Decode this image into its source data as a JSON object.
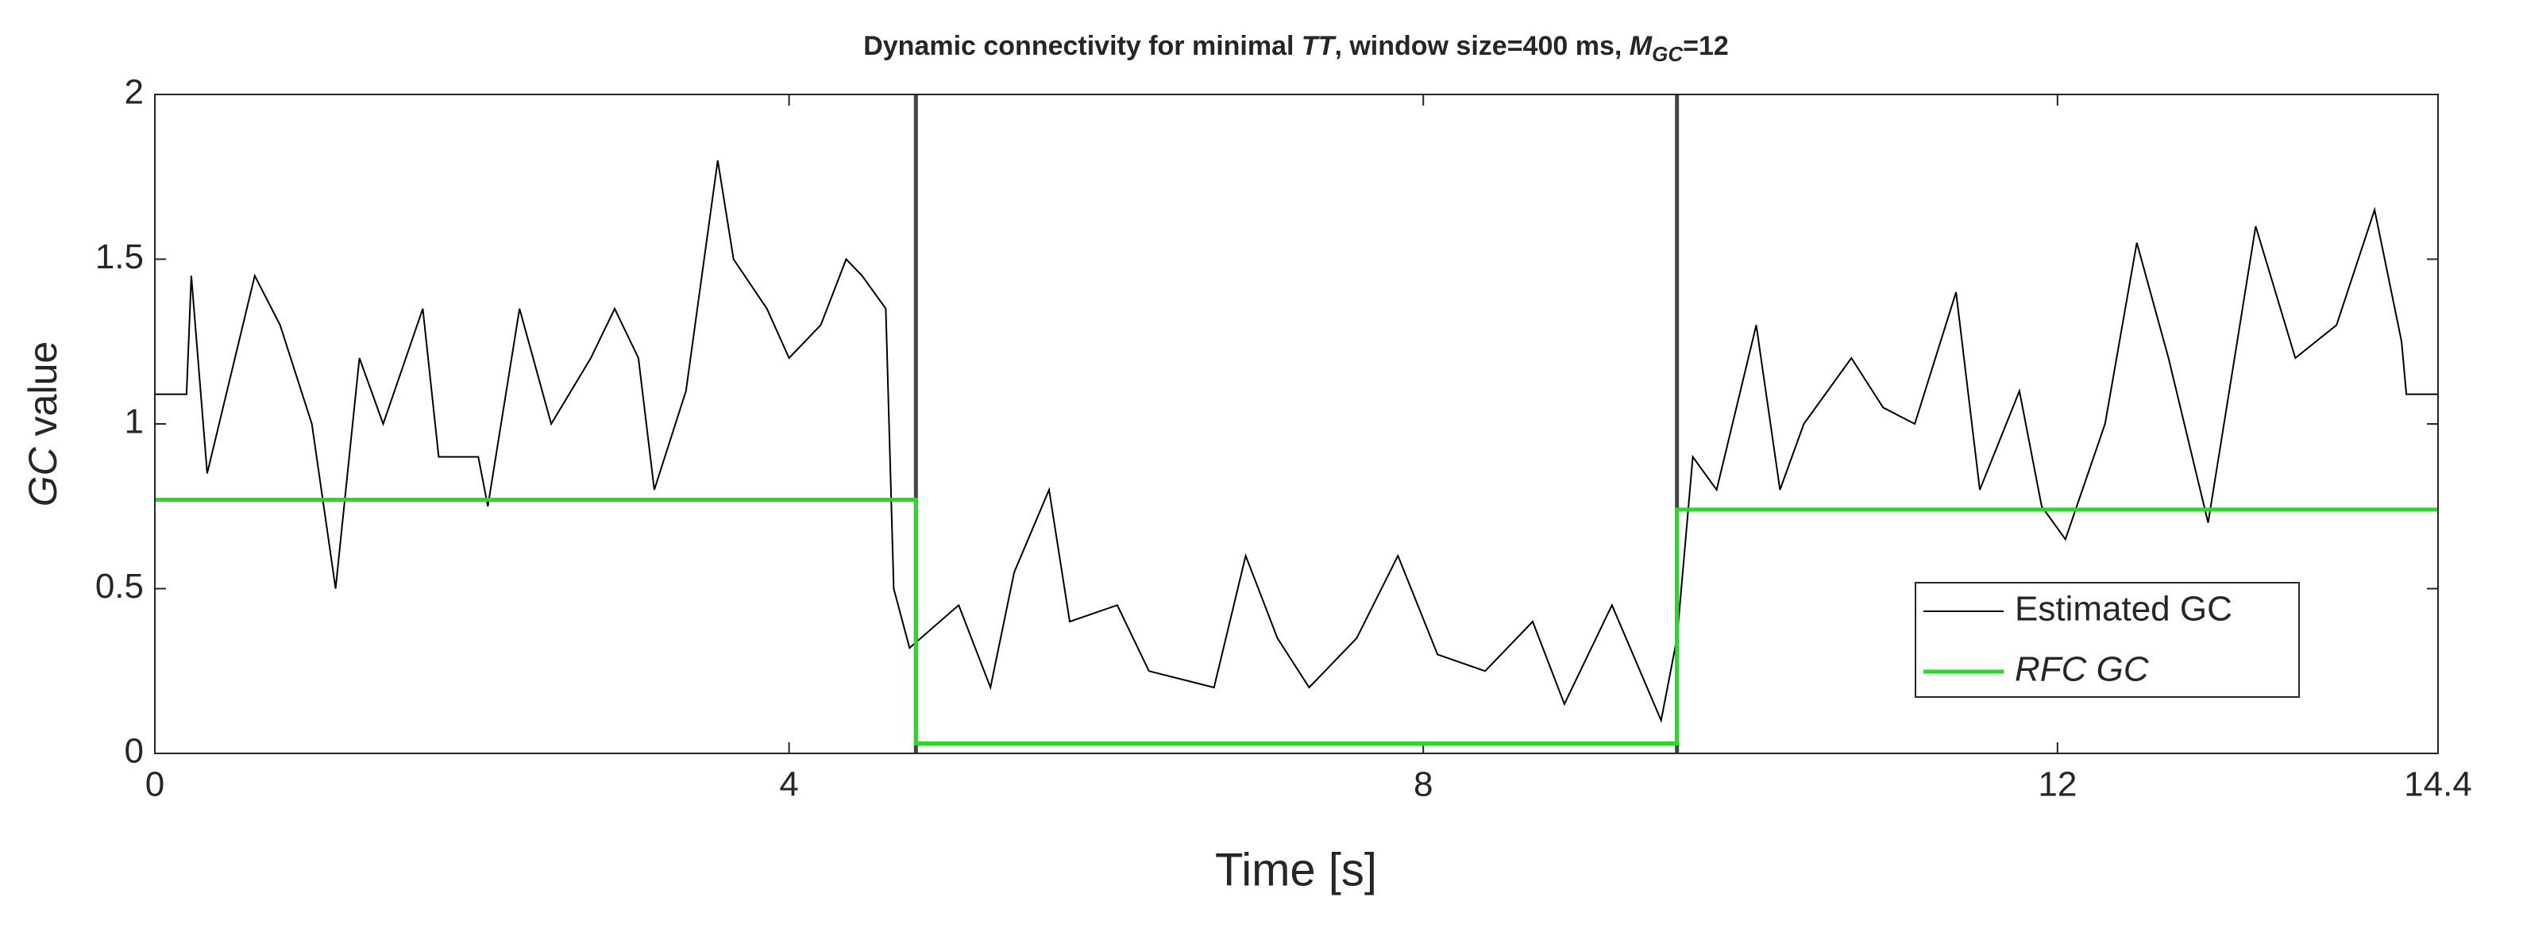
{
  "chart_data": {
    "type": "line",
    "title": [
      "Dynamic connectivity for minimal  ",
      "TT",
      ", window size=400 ms,  ",
      "M",
      "GC",
      "=12"
    ],
    "xlabel": "Time [s]",
    "ylabel": [
      "GC",
      " value"
    ],
    "xlim": [
      0,
      14.4
    ],
    "ylim": [
      0,
      2
    ],
    "xticks": [
      0,
      4,
      8,
      12,
      14.4
    ],
    "yticks": [
      0,
      0.5,
      1,
      1.5,
      2
    ],
    "grid": false,
    "legend": "southeast",
    "change_points": [
      4.8,
      9.6
    ],
    "x": [
      0,
      0.2,
      0.23,
      0.33,
      0.63,
      0.79,
      0.99,
      1.14,
      1.29,
      1.44,
      1.69,
      1.79,
      2.04,
      2.1,
      2.3,
      2.5,
      2.75,
      2.9,
      3.05,
      3.15,
      3.35,
      3.55,
      3.65,
      3.86,
      4.0,
      4.2,
      4.36,
      4.46,
      4.61,
      4.66,
      4.76,
      5.07,
      5.27,
      5.42,
      5.64,
      5.77,
      6.07,
      6.27,
      6.68,
      6.88,
      7.08,
      7.28,
      7.58,
      7.84,
      8.09,
      8.39,
      8.69,
      8.89,
      9.19,
      9.5,
      9.6,
      9.7,
      9.85,
      10.1,
      10.25,
      10.4,
      10.7,
      10.9,
      11.1,
      11.36,
      11.51,
      11.76,
      11.9,
      12.05,
      12.3,
      12.5,
      12.7,
      12.95,
      13.25,
      13.5,
      13.76,
      14.0,
      14.17,
      14.2,
      14.4
    ],
    "series": [
      {
        "name": "Estimated GC",
        "color": "#000000",
        "values": [
          1.09,
          1.09,
          1.45,
          0.85,
          1.45,
          1.3,
          1.0,
          0.5,
          1.2,
          1.0,
          1.35,
          0.9,
          0.9,
          0.75,
          1.35,
          1.0,
          1.2,
          1.35,
          1.2,
          0.8,
          1.1,
          1.8,
          1.5,
          1.35,
          1.2,
          1.3,
          1.5,
          1.45,
          1.35,
          0.5,
          0.32,
          0.45,
          0.2,
          0.55,
          0.8,
          0.4,
          0.45,
          0.25,
          0.2,
          0.6,
          0.35,
          0.2,
          0.35,
          0.6,
          0.3,
          0.25,
          0.4,
          0.15,
          0.45,
          0.1,
          0.35,
          0.9,
          0.8,
          1.3,
          0.8,
          1.0,
          1.2,
          1.05,
          1.0,
          1.4,
          0.8,
          1.1,
          0.75,
          0.65,
          1.0,
          1.55,
          1.2,
          0.7,
          1.6,
          1.2,
          1.3,
          1.65,
          1.25,
          1.09,
          1.09
        ]
      },
      {
        "name": "RFC GC",
        "color": "#22dd22",
        "x": [
          0,
          4.8,
          4.8,
          9.6,
          9.6,
          14.4
        ],
        "values": [
          0.77,
          0.77,
          0.03,
          0.03,
          0.74,
          0.74
        ]
      }
    ]
  }
}
